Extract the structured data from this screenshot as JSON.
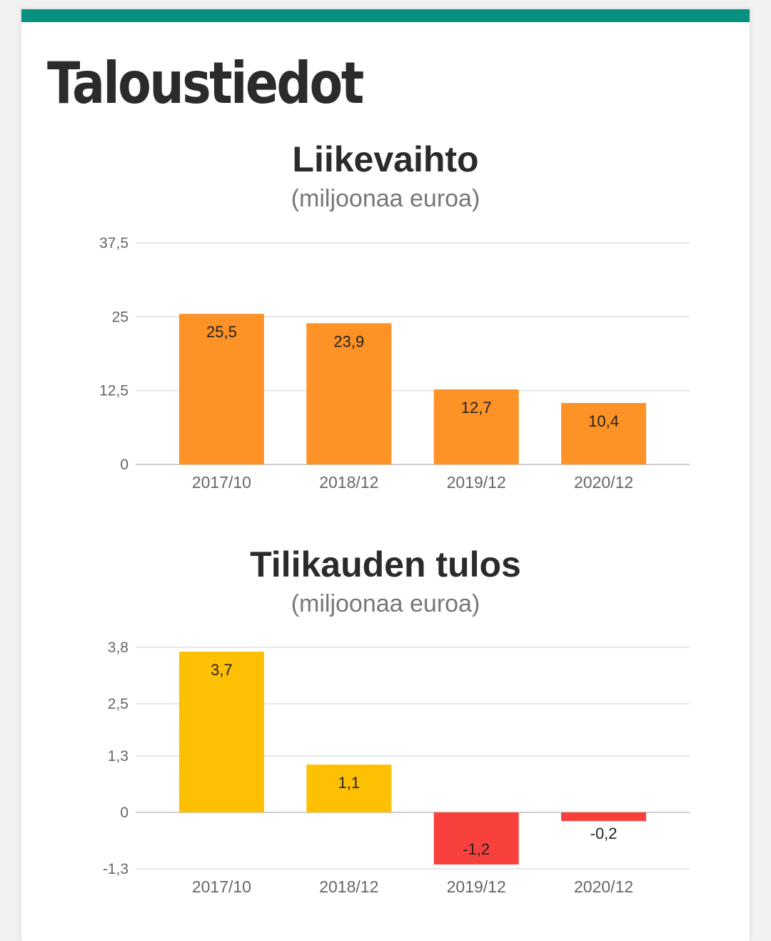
{
  "page": {
    "title": "Taloustiedot",
    "accent_color": "#05907f"
  },
  "chart_data": [
    {
      "type": "bar",
      "title": "Liikevaihto",
      "subtitle": "(miljoonaa euroa)",
      "categories": [
        "2017/10",
        "2018/12",
        "2019/12",
        "2020/12"
      ],
      "values": [
        25.5,
        23.9,
        12.7,
        10.4
      ],
      "data_labels": [
        "25,5",
        "23,9",
        "12,7",
        "10,4"
      ],
      "yticks": [
        0,
        12.5,
        25,
        37.5
      ],
      "ytick_labels": [
        "0",
        "12,5",
        "25",
        "37,5"
      ],
      "ylim": [
        0,
        37.5
      ],
      "grid": true,
      "legend": "none",
      "colors": {
        "positive": "#fd9226",
        "negative": "#fd9226"
      }
    },
    {
      "type": "bar",
      "title": "Tilikauden tulos",
      "subtitle": "(miljoonaa euroa)",
      "categories": [
        "2017/10",
        "2018/12",
        "2019/12",
        "2020/12"
      ],
      "values": [
        3.7,
        1.1,
        -1.2,
        -0.2
      ],
      "data_labels": [
        "3,7",
        "1,1",
        "-1,2",
        "-0,2"
      ],
      "yticks": [
        -1.3,
        0,
        1.3,
        2.5,
        3.8
      ],
      "ytick_labels": [
        "-1,3",
        "0",
        "1,3",
        "2,5",
        "3,8"
      ],
      "ylim": [
        -1.3,
        3.8
      ],
      "grid": true,
      "legend": "none",
      "colors": {
        "positive": "#fec002",
        "negative": "#f8403d"
      }
    }
  ]
}
